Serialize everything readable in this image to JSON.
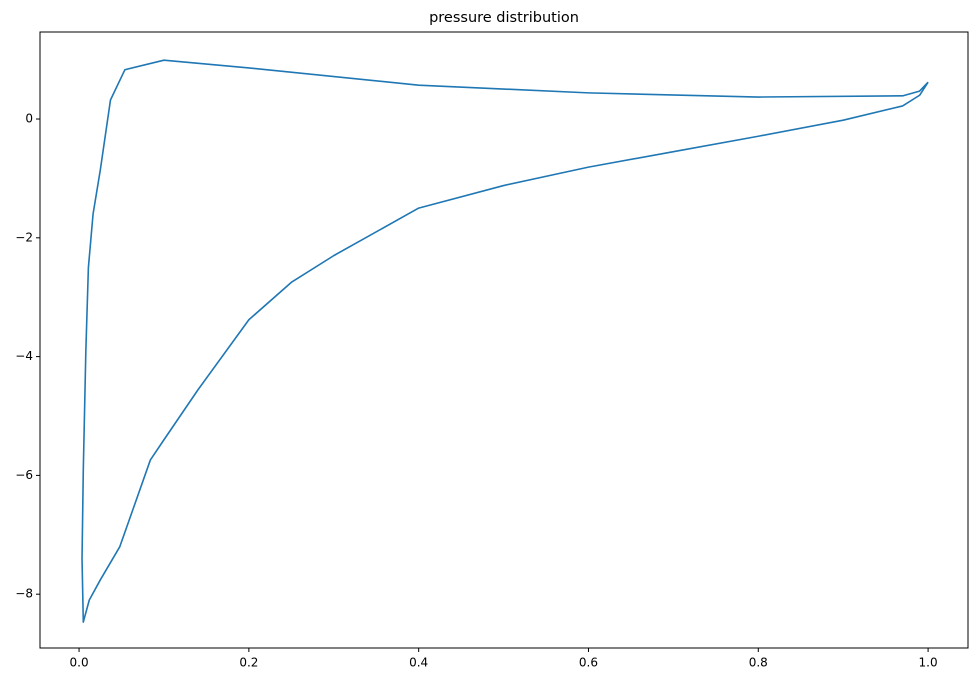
{
  "chart_data": {
    "type": "line",
    "title": "pressure distribution",
    "x": [
      1.0,
      0.99,
      0.97,
      0.8,
      0.6,
      0.4,
      0.2,
      0.1,
      0.054,
      0.037,
      0.025,
      0.0165,
      0.011,
      0.008,
      0.005,
      0.0035,
      0.005,
      0.012,
      0.025,
      0.048,
      0.084,
      0.1,
      0.14,
      0.2,
      0.25,
      0.3,
      0.4,
      0.5,
      0.6,
      0.7,
      0.8,
      0.9,
      0.97,
      0.99,
      1.0
    ],
    "series": [
      {
        "color": "#1f77b4",
        "values": [
          0.62,
          0.47,
          0.39,
          0.37,
          0.44,
          0.57,
          0.86,
          0.99,
          0.83,
          0.32,
          -0.86,
          -1.6,
          -2.5,
          -3.9,
          -5.9,
          -7.4,
          -8.47,
          -8.1,
          -7.76,
          -7.2,
          -5.74,
          -5.4,
          -4.56,
          -3.38,
          -2.75,
          -2.3,
          -1.5,
          -1.12,
          -0.81,
          -0.55,
          -0.29,
          -0.02,
          0.22,
          0.4,
          0.62
        ]
      }
    ],
    "xlim": [
      -0.046,
      1.047
    ],
    "ylim": [
      -8.906,
      1.465
    ],
    "xticks": [
      {
        "value": 0,
        "label": "0.0"
      },
      {
        "value": 0.2,
        "label": "0.2"
      },
      {
        "value": 0.4,
        "label": "0.4"
      },
      {
        "value": 0.6,
        "label": "0.6"
      },
      {
        "value": 0.8,
        "label": "0.8"
      },
      {
        "value": 1,
        "label": "1.0"
      }
    ],
    "yticks": [
      {
        "value": -8,
        "label": "−8"
      },
      {
        "value": -6,
        "label": "−6"
      },
      {
        "value": -4,
        "label": "−4"
      },
      {
        "value": -2,
        "label": "−2"
      },
      0
    ],
    "grid": false
  }
}
